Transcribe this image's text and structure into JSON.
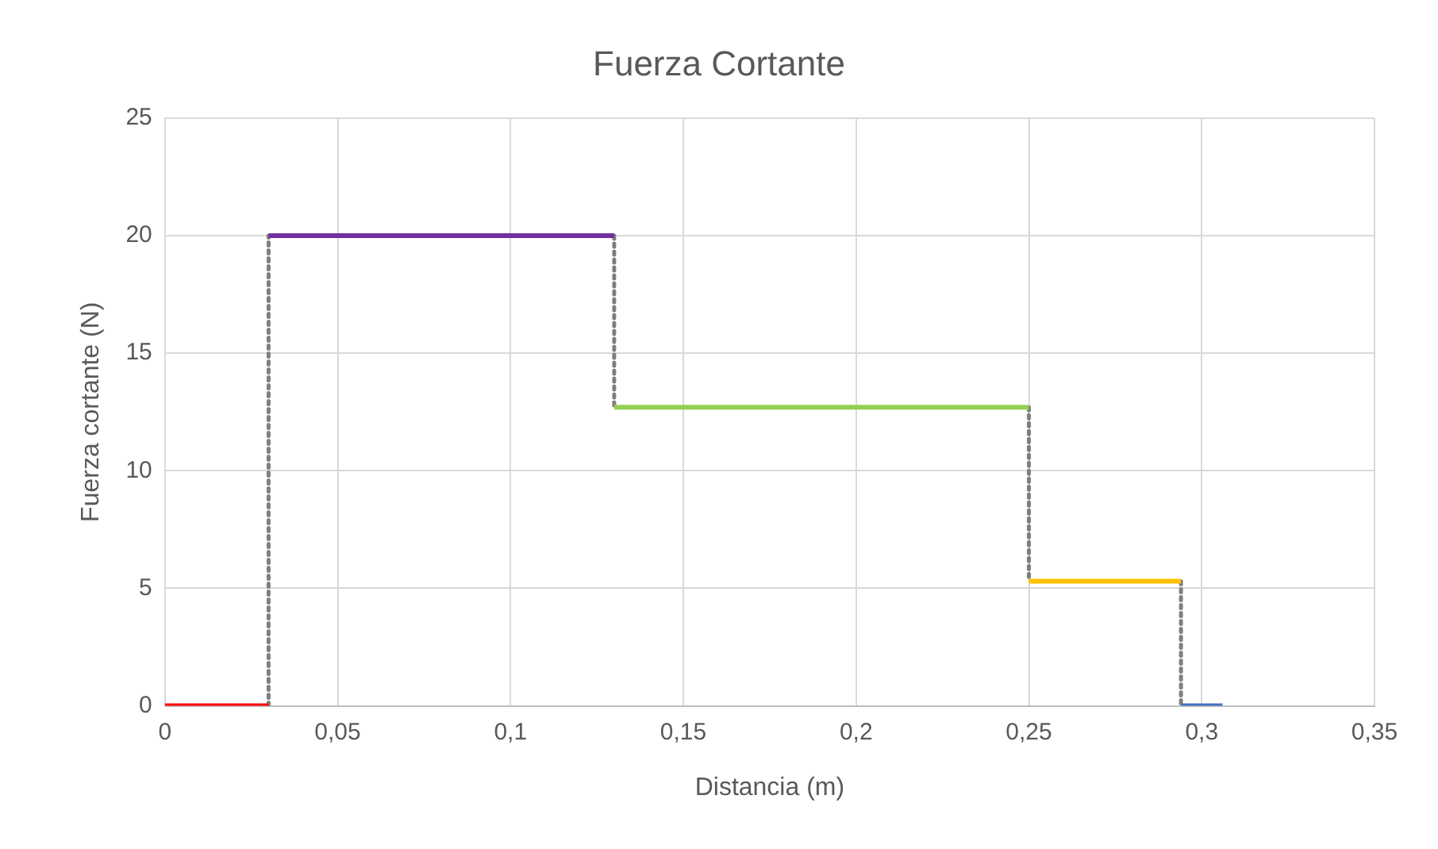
{
  "chart_data": {
    "type": "line",
    "title": "Fuerza Cortante",
    "xlabel": "Distancia (m)",
    "ylabel": "Fuerza cortante (N)",
    "series": [
      {
        "color": "#ff0000",
        "x": [
          0,
          0.03
        ],
        "values": [
          0,
          0
        ]
      },
      {
        "color": "#7030a0",
        "x": [
          0.03,
          0.13
        ],
        "values": [
          20,
          20
        ]
      },
      {
        "color": "#92d050",
        "x": [
          0.13,
          0.25
        ],
        "values": [
          12.7,
          12.7
        ]
      },
      {
        "color": "#ffc000",
        "x": [
          0.25,
          0.294
        ],
        "values": [
          5.3,
          5.3
        ]
      },
      {
        "color": "#4472c4",
        "x": [
          0.294,
          0.306
        ],
        "values": [
          0,
          0
        ]
      },
      {
        "color": "#7f7f7f",
        "line_style": "dotted",
        "x": [
          0.03,
          0.03
        ],
        "values": [
          0,
          20
        ]
      },
      {
        "color": "#7f7f7f",
        "line_style": "dotted",
        "x": [
          0.13,
          0.13
        ],
        "values": [
          20,
          12.7
        ]
      },
      {
        "color": "#7f7f7f",
        "line_style": "dotted",
        "x": [
          0.25,
          0.25
        ],
        "values": [
          12.7,
          5.3
        ]
      },
      {
        "color": "#7f7f7f",
        "line_style": "dotted",
        "x": [
          0.294,
          0.294
        ],
        "values": [
          5.3,
          0
        ]
      }
    ],
    "xlim": [
      0,
      0.35
    ],
    "xticks": [
      0,
      {
        "value": 0.05,
        "label": "0,05"
      },
      {
        "value": 0.1,
        "label": "0,1"
      },
      {
        "value": 0.15,
        "label": "0,15"
      },
      {
        "value": 0.2,
        "label": "0,2"
      },
      {
        "value": 0.25,
        "label": "0,25"
      },
      {
        "value": 0.3,
        "label": "0,3"
      },
      {
        "value": 0.35,
        "label": "0,35"
      }
    ],
    "ylim": [
      0,
      25
    ],
    "yticks": [
      0,
      5,
      10,
      15,
      20,
      25
    ],
    "grid": true,
    "legend": false,
    "marker": "none"
  }
}
